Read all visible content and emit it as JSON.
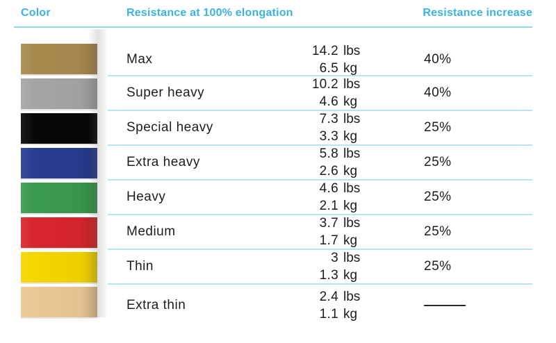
{
  "header": {
    "color_label": "Color",
    "resistance_label": "Resistance at 100% elongation",
    "increase_label": "Resistance increase"
  },
  "colors": {
    "header_text": "#3ab3e2",
    "header_underline": "#8ed6ea",
    "row_divider": "#b5e6f2",
    "body_text": "#1c1c1c"
  },
  "table": {
    "rows": [
      {
        "band_name": "gold",
        "band_color": "#a88a4f",
        "name": "Max",
        "lbs": "14.2",
        "lbs_unit": "lbs",
        "kg": "6.5",
        "kg_unit": "kg",
        "increase": "40%"
      },
      {
        "band_name": "silver",
        "band_color": "#a5a5a8",
        "name": "Super heavy",
        "lbs": "10.2",
        "lbs_unit": "lbs",
        "kg": "4.6",
        "kg_unit": "kg",
        "increase": "40%"
      },
      {
        "band_name": "black",
        "band_color": "#070707",
        "name": "Special heavy",
        "lbs": "7.3",
        "lbs_unit": "lbs",
        "kg": "3.3",
        "kg_unit": "kg",
        "increase": "25%"
      },
      {
        "band_name": "blue",
        "band_color": "#283c92",
        "name": "Extra heavy",
        "lbs": "5.8",
        "lbs_unit": "lbs",
        "kg": "2.6",
        "kg_unit": "kg",
        "increase": "25%"
      },
      {
        "band_name": "green",
        "band_color": "#3a9a4d",
        "name": "Heavy",
        "lbs": "4.6",
        "lbs_unit": "lbs",
        "kg": "2.1",
        "kg_unit": "kg",
        "increase": "25%"
      },
      {
        "band_name": "red",
        "band_color": "#d7262c",
        "name": "Medium",
        "lbs": "3.7",
        "lbs_unit": "lbs",
        "kg": "1.7",
        "kg_unit": "kg",
        "increase": "25%"
      },
      {
        "band_name": "yellow",
        "band_color": "#f5d600",
        "name": "Thin",
        "lbs": "3",
        "lbs_unit": "lbs",
        "kg": "1.3",
        "kg_unit": "kg",
        "increase": "25%"
      },
      {
        "band_name": "beige",
        "band_color": "#ebc795",
        "name": "Extra thin",
        "lbs": "2.4",
        "lbs_unit": "lbs",
        "kg": "1.1",
        "kg_unit": "kg",
        "increase": ""
      }
    ]
  },
  "chart_data": {
    "type": "table",
    "columns": [
      "Color",
      "Resistance at 100% elongation",
      "Resistance increase"
    ],
    "rows": [
      {
        "color": "gold",
        "name": "Max",
        "resistance_lbs": 14.2,
        "resistance_kg": 6.5,
        "increase_pct": 40
      },
      {
        "color": "silver",
        "name": "Super heavy",
        "resistance_lbs": 10.2,
        "resistance_kg": 4.6,
        "increase_pct": 40
      },
      {
        "color": "black",
        "name": "Special heavy",
        "resistance_lbs": 7.3,
        "resistance_kg": 3.3,
        "increase_pct": 25
      },
      {
        "color": "blue",
        "name": "Extra heavy",
        "resistance_lbs": 5.8,
        "resistance_kg": 2.6,
        "increase_pct": 25
      },
      {
        "color": "green",
        "name": "Heavy",
        "resistance_lbs": 4.6,
        "resistance_kg": 2.1,
        "increase_pct": 25
      },
      {
        "color": "red",
        "name": "Medium",
        "resistance_lbs": 3.7,
        "resistance_kg": 1.7,
        "increase_pct": 25
      },
      {
        "color": "yellow",
        "name": "Thin",
        "resistance_lbs": 3,
        "resistance_kg": 1.3,
        "increase_pct": 25
      },
      {
        "color": "beige",
        "name": "Extra thin",
        "resistance_lbs": 2.4,
        "resistance_kg": 1.1,
        "increase_pct": null
      }
    ]
  }
}
